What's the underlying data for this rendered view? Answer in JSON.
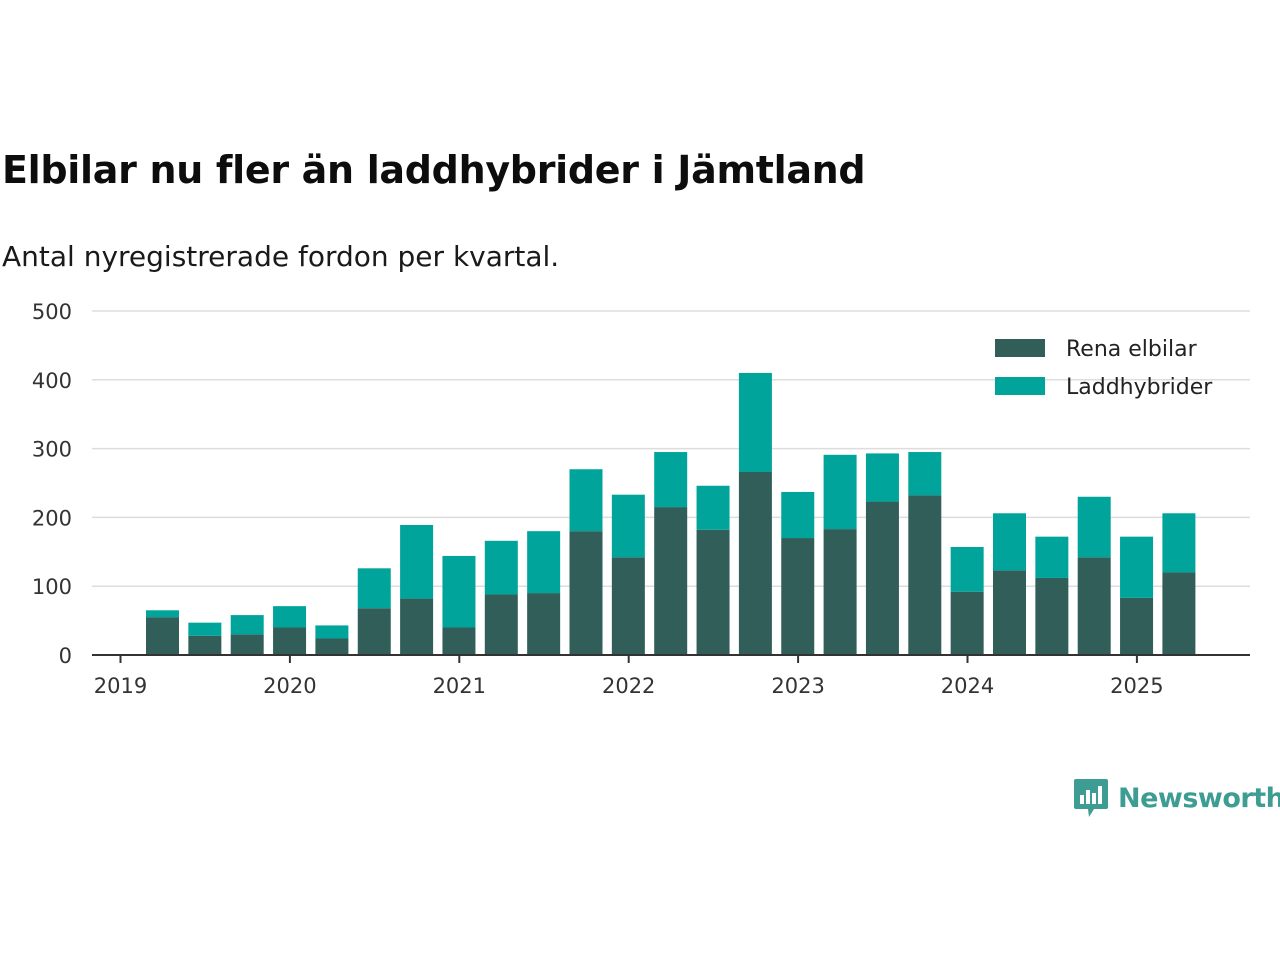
{
  "header": {
    "title": "Elbilar nu fler än laddhybrider i Jämtland",
    "subtitle": "Antal nyregistrerade fordon per kvartal."
  },
  "brand": {
    "name": "Newsworthy",
    "icon": "newsworthy-logo-icon",
    "color": "#3d9d93"
  },
  "chart_data": {
    "type": "bar",
    "stacked": true,
    "categories": [
      "2019Q2",
      "2019Q3",
      "2019Q4",
      "2020Q1",
      "2020Q2",
      "2020Q3",
      "2020Q4",
      "2021Q1",
      "2021Q2",
      "2021Q3",
      "2021Q4",
      "2022Q1",
      "2022Q2",
      "2022Q3",
      "2022Q4",
      "2023Q1",
      "2023Q2",
      "2023Q3",
      "2023Q4",
      "2024Q1",
      "2024Q2",
      "2024Q3",
      "2024Q4",
      "2025Q1",
      "2025Q2"
    ],
    "series": [
      {
        "name": "Rena elbilar",
        "color": "#325e5a",
        "values": [
          55,
          28,
          30,
          40,
          24,
          68,
          82,
          40,
          88,
          90,
          180,
          142,
          215,
          182,
          266,
          170,
          183,
          223,
          232,
          92,
          123,
          112,
          142,
          83,
          120
        ]
      },
      {
        "name": "Laddhybrider",
        "color": "#00a49b",
        "values": [
          10,
          19,
          28,
          31,
          19,
          58,
          107,
          104,
          78,
          90,
          90,
          91,
          80,
          64,
          144,
          67,
          108,
          70,
          63,
          65,
          83,
          60,
          88,
          89,
          86
        ]
      }
    ],
    "x_ticks": [
      "2019",
      "2020",
      "2021",
      "2022",
      "2023",
      "2024",
      "2025"
    ],
    "y_ticks": [
      0,
      100,
      200,
      300,
      400,
      500
    ],
    "ylim": [
      0,
      500
    ],
    "grid": "horizontal",
    "legend": "top-right",
    "xlabel": "",
    "ylabel": ""
  }
}
